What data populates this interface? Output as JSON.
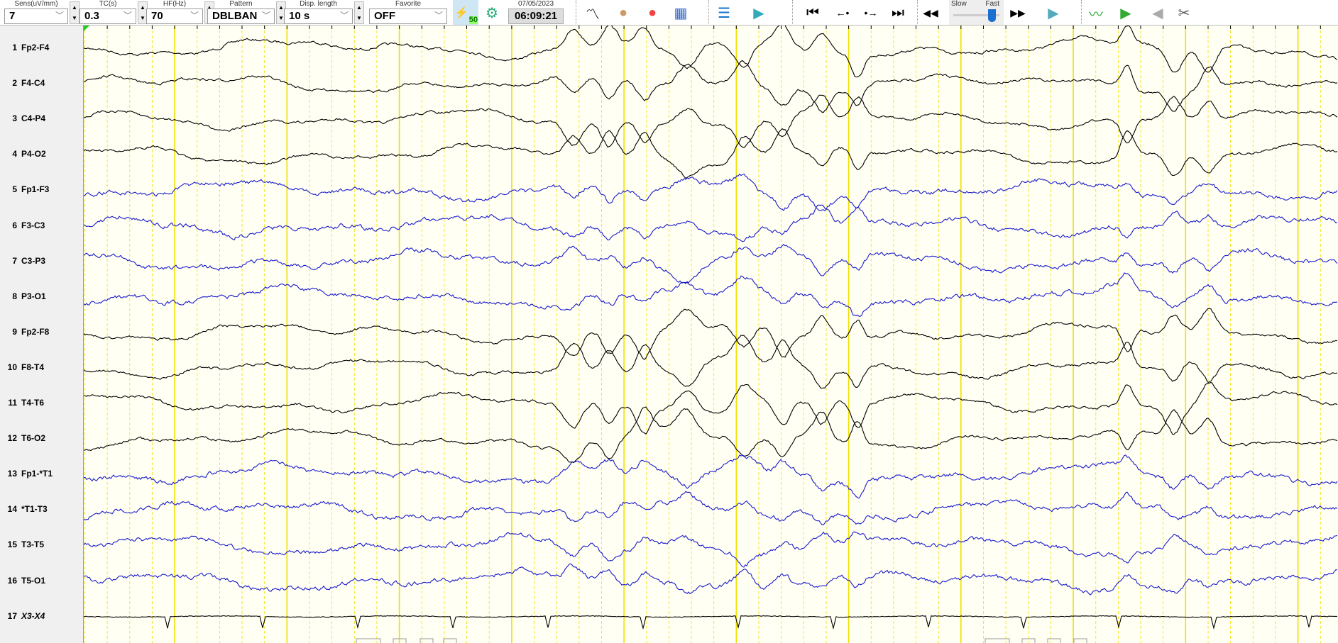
{
  "toolbar": {
    "sens": {
      "label": "Sens(uV/mm)",
      "value": "7"
    },
    "tc": {
      "label": "TC(s)",
      "value": "0.3"
    },
    "hf": {
      "label": "HF(Hz)",
      "value": "70"
    },
    "pattern": {
      "label": "Pattern",
      "value": "DBLBAN"
    },
    "disp_length": {
      "label": "Disp. length",
      "value": "10 s"
    },
    "favorite": {
      "label": "Favorite",
      "value": "OFF"
    },
    "filter_badge": "50",
    "date": "07/05/2023",
    "time": "06:09:21",
    "speed": {
      "slow_label": "Slow",
      "fast_label": "Fast",
      "level": 0.9
    },
    "icons": [
      "notch-filter-icon",
      "electrode-settings-icon",
      "waveform-marker-icon",
      "head-map-icon",
      "topography-icon",
      "spectrogram-icon",
      "patient-info-icon",
      "video-icon",
      "first-page-icon",
      "step-back-icon",
      "step-forward-icon",
      "last-page-icon",
      "rewind-icon",
      "fast-forward-icon",
      "play-icon",
      "montage-wave-icon",
      "next-green-icon",
      "prev-disabled-icon",
      "clip-video-icon"
    ]
  },
  "channels": [
    {
      "num": "1",
      "name": "Fp2-F4",
      "color": "#000000"
    },
    {
      "num": "2",
      "name": "F4-C4",
      "color": "#000000"
    },
    {
      "num": "3",
      "name": "C4-P4",
      "color": "#000000"
    },
    {
      "num": "4",
      "name": "P4-O2",
      "color": "#000000"
    },
    {
      "num": "5",
      "name": "Fp1-F3",
      "color": "#1a1acc"
    },
    {
      "num": "6",
      "name": "F3-C3",
      "color": "#1a1acc"
    },
    {
      "num": "7",
      "name": "C3-P3",
      "color": "#1a1acc"
    },
    {
      "num": "8",
      "name": "P3-O1",
      "color": "#1a1acc"
    },
    {
      "num": "9",
      "name": "Fp2-F8",
      "color": "#000000"
    },
    {
      "num": "10",
      "name": "F8-T4",
      "color": "#000000"
    },
    {
      "num": "11",
      "name": "T4-T6",
      "color": "#000000"
    },
    {
      "num": "12",
      "name": "T6-O2",
      "color": "#000000"
    },
    {
      "num": "13",
      "name": "Fp1-*T1",
      "color": "#1a1acc"
    },
    {
      "num": "14",
      "name": "*T1-T3",
      "color": "#1a1acc"
    },
    {
      "num": "15",
      "name": "T3-T5",
      "color": "#1a1acc"
    },
    {
      "num": "16",
      "name": "T5-O1",
      "color": "#1a1acc"
    },
    {
      "num": "17",
      "name": "X3-X4",
      "color": "#000000"
    }
  ],
  "colors": {
    "background": "#fffff4",
    "grid": "#f0e000"
  }
}
